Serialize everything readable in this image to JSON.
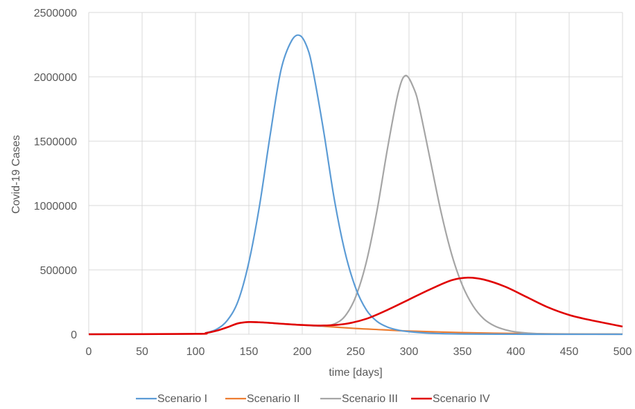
{
  "chart_data": {
    "type": "line",
    "xlabel": "time [days]",
    "ylabel": "Covid-19 Cases",
    "xlim": [
      0,
      500
    ],
    "ylim": [
      0,
      2500000
    ],
    "xticks": [
      0,
      50,
      100,
      150,
      200,
      250,
      300,
      350,
      400,
      450,
      500
    ],
    "yticks": [
      0,
      500000,
      1000000,
      1500000,
      2000000,
      2500000
    ],
    "grid": true,
    "legend_position": "bottom",
    "series": [
      {
        "name": "Scenario I",
        "color": "#5b9bd5",
        "x": [
          0,
          100,
          110,
          120,
          130,
          140,
          150,
          160,
          170,
          180,
          190,
          198,
          205,
          210,
          220,
          230,
          240,
          250,
          260,
          270,
          280,
          290,
          300,
          320,
          350,
          400,
          450,
          500
        ],
        "y": [
          0,
          3000,
          12000,
          40000,
          110000,
          260000,
          560000,
          1000000,
          1550000,
          2050000,
          2280000,
          2320000,
          2220000,
          2050000,
          1580000,
          1050000,
          640000,
          360000,
          190000,
          100000,
          55000,
          32000,
          20000,
          8000,
          2000,
          300,
          0,
          0
        ]
      },
      {
        "name": "Scenario II",
        "color": "#ed7d31",
        "x": [
          0,
          100,
          110,
          120,
          130,
          140,
          150,
          160,
          170,
          180,
          200,
          220,
          250,
          275,
          300,
          350,
          400,
          450,
          500
        ],
        "y": [
          0,
          3000,
          10000,
          28000,
          55000,
          85000,
          95000,
          93000,
          88000,
          82000,
          72000,
          62000,
          45000,
          35000,
          25000,
          13000,
          6000,
          2500,
          1000
        ]
      },
      {
        "name": "Scenario III",
        "color": "#a5a5a5",
        "x": [
          0,
          100,
          110,
          120,
          130,
          140,
          150,
          160,
          170,
          180,
          200,
          210,
          220,
          230,
          240,
          250,
          260,
          270,
          280,
          290,
          297,
          305,
          310,
          320,
          330,
          340,
          350,
          360,
          370,
          380,
          390,
          400,
          420,
          450,
          500
        ],
        "y": [
          0,
          3000,
          10000,
          28000,
          55000,
          85000,
          95000,
          93000,
          88000,
          82000,
          72000,
          66000,
          64000,
          80000,
          140000,
          290000,
          560000,
          960000,
          1450000,
          1880000,
          2010000,
          1900000,
          1750000,
          1350000,
          950000,
          620000,
          380000,
          220000,
          120000,
          65000,
          35000,
          18000,
          5000,
          1000,
          0
        ]
      },
      {
        "name": "Scenario IV",
        "color": "#e00000",
        "x": [
          0,
          100,
          110,
          120,
          130,
          140,
          150,
          160,
          170,
          180,
          200,
          220,
          240,
          260,
          280,
          300,
          320,
          340,
          355,
          370,
          390,
          410,
          430,
          450,
          470,
          500
        ],
        "y": [
          0,
          3000,
          10000,
          28000,
          55000,
          85000,
          95000,
          93000,
          88000,
          82000,
          72000,
          68000,
          80000,
          120000,
          190000,
          270000,
          350000,
          420000,
          440000,
          425000,
          370000,
          290000,
          210000,
          150000,
          110000,
          60000
        ]
      }
    ]
  }
}
